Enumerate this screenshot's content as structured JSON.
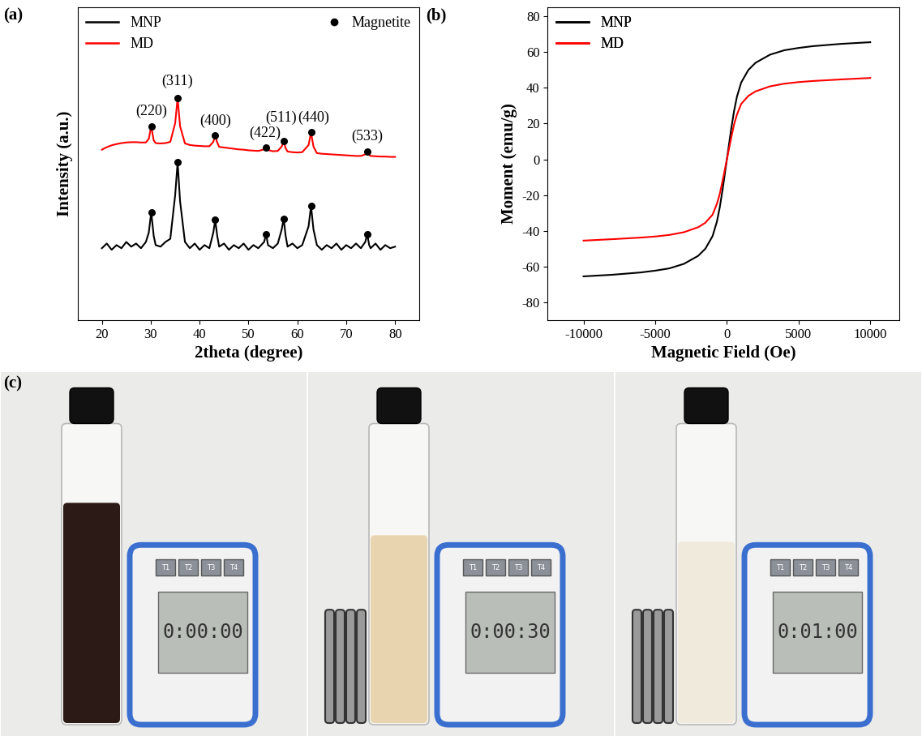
{
  "chart_data": [
    {
      "type": "line",
      "title": "(a)",
      "x_label": "2theta (degree)",
      "y_label": "Intensity (a.u.)",
      "x": [
        20,
        21,
        22,
        23,
        24,
        25,
        26,
        27,
        28,
        29,
        29.6,
        30.1,
        30.6,
        31,
        32,
        33,
        34,
        35,
        35.5,
        36,
        37,
        38,
        39,
        40,
        41,
        42,
        42.8,
        43.2,
        43.6,
        44,
        45,
        46,
        47,
        48,
        49,
        50,
        51,
        52,
        53.2,
        53.6,
        54,
        55,
        56,
        56.8,
        57.2,
        57.6,
        58,
        59,
        60,
        61,
        62.3,
        62.8,
        63.3,
        64,
        65,
        66,
        67,
        68,
        69,
        70,
        71,
        72,
        73,
        73.9,
        74.3,
        74.7,
        75,
        76,
        77,
        78,
        79,
        80
      ],
      "series": [
        {
          "name": "MNP",
          "color": "#000000",
          "line_style": "solid",
          "values": [
            23,
            24.5,
            22.5,
            24,
            23,
            25,
            23.5,
            24.5,
            23,
            25,
            28,
            34.5,
            27,
            24,
            23.5,
            25,
            26,
            40,
            50.5,
            38,
            25,
            23,
            24.5,
            22.5,
            24,
            23,
            28,
            32,
            27,
            23.5,
            24.5,
            22.5,
            24,
            23,
            24.5,
            22.5,
            24,
            23,
            25,
            27.5,
            24,
            23,
            24.5,
            29,
            32.5,
            27,
            23.5,
            24.5,
            23,
            24,
            30,
            36.5,
            29,
            24,
            22.5,
            24,
            23,
            24.5,
            22.5,
            24,
            23,
            24.5,
            23,
            25,
            27.5,
            24,
            23,
            24.5,
            22.5,
            24,
            23,
            23.5
          ]
        },
        {
          "name": "MD",
          "color": "#ff0000",
          "line_style": "solid",
          "values": [
            54.5,
            55.3,
            55.9,
            56.3,
            56.6,
            56.8,
            56.9,
            56.9,
            56.8,
            56.8,
            58,
            62,
            57.5,
            56.6,
            56.5,
            56.6,
            57,
            63,
            71,
            62,
            56.5,
            56,
            55.8,
            55.7,
            55.6,
            55.6,
            57,
            59,
            56.8,
            55.4,
            55.2,
            55,
            54.8,
            54.6,
            54.5,
            54.3,
            54.2,
            54.1,
            54.6,
            55.3,
            54.4,
            54,
            54.1,
            55.5,
            57.2,
            55,
            53.9,
            53.7,
            53.6,
            53.7,
            56,
            60,
            55.5,
            53.4,
            53.2,
            53.1,
            53,
            52.9,
            52.8,
            52.7,
            52.6,
            52.5,
            52.5,
            53,
            53.8,
            52.8,
            52.5,
            52.4,
            52.3,
            52.3,
            52.2,
            52.2
          ]
        },
        {
          "name": "Magnetite",
          "type": "scatter",
          "color": "#000000",
          "marker": "circle",
          "x": [
            30.1,
            35.5,
            43.2,
            53.6,
            57.2,
            62.8,
            74.3,
            30.1,
            35.5,
            43.2,
            53.6,
            57.2,
            62.8,
            74.3
          ],
          "values": [
            62,
            71,
            59,
            55.3,
            57.2,
            60,
            53.8,
            34.5,
            50.5,
            32,
            27.5,
            32.5,
            36.5,
            27.5
          ]
        }
      ],
      "annotations": [
        {
          "text": "(220)",
          "x": 30.1,
          "y": 64.5
        },
        {
          "text": "(311)",
          "x": 35.5,
          "y": 74
        },
        {
          "text": "(400)",
          "x": 43.2,
          "y": 61.5
        },
        {
          "text": "(422)",
          "x": 53.3,
          "y": 57.5
        },
        {
          "text": "(511)",
          "x": 56.6,
          "y": 62.5
        },
        {
          "text": "(440)",
          "x": 63.3,
          "y": 62.5
        },
        {
          "text": "(533)",
          "x": 74.3,
          "y": 56.5
        }
      ],
      "xlim": [
        15,
        85
      ],
      "xticks": [
        20,
        30,
        40,
        50,
        60,
        70,
        80
      ],
      "ylim": [
        0,
        100
      ],
      "yticks": [],
      "tick_labels": "x",
      "grid": false,
      "legend": "upper left"
    },
    {
      "type": "line",
      "title": "(b)",
      "x_label": "Magnetic Field (Oe)",
      "y_label": "Moment (emu/g)",
      "x": [
        -10000,
        -8000,
        -6000,
        -5000,
        -4000,
        -3000,
        -2000,
        -1500,
        -1000,
        -700,
        -500,
        -300,
        -150,
        0,
        150,
        300,
        500,
        700,
        1000,
        1500,
        2000,
        3000,
        4000,
        5000,
        6000,
        8000,
        10000
      ],
      "series": [
        {
          "name": "MNP",
          "color": "#000000",
          "line_style": "solid",
          "values": [
            -65.5,
            -64.6,
            -63.3,
            -62.3,
            -61,
            -58.5,
            -54,
            -50,
            -43,
            -35,
            -27,
            -17,
            -8.5,
            0,
            8.5,
            17,
            27,
            35,
            43,
            50,
            54,
            58.5,
            61,
            62.3,
            63.3,
            64.6,
            65.5
          ]
        },
        {
          "name": "MD",
          "color": "#ff0000",
          "line_style": "solid",
          "values": [
            -45.5,
            -44.7,
            -43.8,
            -43.2,
            -42.3,
            -40.8,
            -38,
            -35.5,
            -31,
            -25,
            -19.5,
            -12,
            -6,
            0,
            6,
            12,
            19.5,
            25,
            31,
            35.5,
            38,
            40.8,
            42.3,
            43.2,
            43.8,
            44.7,
            45.5
          ]
        }
      ],
      "xlim": [
        -12500,
        12000
      ],
      "xticks": [
        -10000,
        -5000,
        0,
        5000,
        10000
      ],
      "ylim": [
        -90,
        85
      ],
      "yticks": [
        -80,
        -60,
        -40,
        -20,
        0,
        20,
        40,
        60,
        80
      ],
      "grid": false,
      "legend": "upper left"
    }
  ],
  "photo": {
    "title": "(c)",
    "timers": [
      "0:00:00",
      "0:00:30",
      "0:01:00"
    ],
    "buttons": [
      "T1",
      "T2",
      "T3",
      "T4"
    ],
    "colors": [
      "#2b1a15",
      "#e8d5b0",
      "#efeadc"
    ]
  }
}
